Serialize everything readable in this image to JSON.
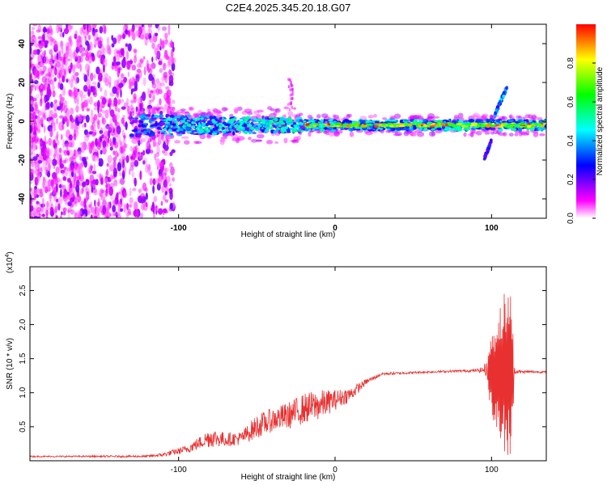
{
  "title": "C2E4.2025.345.20.18.G07",
  "chart_data": [
    {
      "type": "heatmap",
      "xlabel": "Height of straight line (km)",
      "ylabel": "Frequency (Hz)",
      "xlim": [
        -195,
        135
      ],
      "ylim": [
        -50,
        50
      ],
      "xticks": [
        -100,
        0,
        100
      ],
      "yticks": [
        -40,
        -20,
        0,
        20,
        40
      ],
      "colorbar": {
        "label": "Normalized spectral amplitude",
        "range": [
          0,
          1
        ],
        "ticks": [
          0.0,
          0.2,
          0.4,
          0.6,
          0.8
        ],
        "colormap": [
          "#ffffff",
          "#ff00ff",
          "#7f00ff",
          "#0000ff",
          "#0080ff",
          "#00ffff",
          "#00ff80",
          "#00ff00",
          "#80ff00",
          "#ffff00",
          "#ff8000",
          "#ff0000"
        ]
      },
      "features": [
        {
          "name": "noise scatter",
          "x_range": [
            -195,
            -108
          ],
          "freq_range": [
            -50,
            50
          ]
        },
        {
          "name": "main band",
          "x_range": [
            -130,
            135
          ],
          "center_freq": -2
        },
        {
          "name": "strong line",
          "x_range": [
            -20,
            135
          ],
          "center_freq": -2
        },
        {
          "name": "low burst",
          "x_range": [
            95,
            100
          ],
          "freq_range": [
            -20,
            -10
          ]
        },
        {
          "name": "high burst",
          "x_range": [
            102,
            110
          ],
          "freq_range": [
            5,
            18
          ]
        },
        {
          "name": "minor streak",
          "x_range": [
            -30,
            -27
          ],
          "freq_range": [
            5,
            22
          ]
        }
      ]
    },
    {
      "type": "line",
      "title": "",
      "xlabel": "Height of straight line (km)",
      "ylabel": "SNR (10 * v/v)",
      "y_scale_label": "(x10",
      "y_scale_exp": "4",
      "y_scale_close": ")",
      "xlim": [
        -195,
        135
      ],
      "ylim": [
        0,
        2.85
      ],
      "xticks": [
        -100,
        0,
        100
      ],
      "yticks": [
        0.5,
        1.0,
        1.5,
        2.0,
        2.5
      ],
      "color": "#e83030",
      "envelope": [
        {
          "x": -195,
          "base": 0.06,
          "amp": 0.02
        },
        {
          "x": -120,
          "base": 0.06,
          "amp": 0.03
        },
        {
          "x": -110,
          "base": 0.08,
          "amp": 0.06
        },
        {
          "x": -95,
          "base": 0.15,
          "amp": 0.12
        },
        {
          "x": -85,
          "base": 0.25,
          "amp": 0.2
        },
        {
          "x": -80,
          "base": 0.3,
          "amp": 0.3
        },
        {
          "x": -70,
          "base": 0.28,
          "amp": 0.2
        },
        {
          "x": -60,
          "base": 0.3,
          "amp": 0.2
        },
        {
          "x": -50,
          "base": 0.45,
          "amp": 0.35
        },
        {
          "x": -40,
          "base": 0.55,
          "amp": 0.35
        },
        {
          "x": -30,
          "base": 0.6,
          "amp": 0.4
        },
        {
          "x": -20,
          "base": 0.7,
          "amp": 0.45
        },
        {
          "x": -10,
          "base": 0.75,
          "amp": 0.45
        },
        {
          "x": 0,
          "base": 0.85,
          "amp": 0.3
        },
        {
          "x": 10,
          "base": 0.95,
          "amp": 0.2
        },
        {
          "x": 20,
          "base": 1.15,
          "amp": 0.08
        },
        {
          "x": 30,
          "base": 1.27,
          "amp": 0.04
        },
        {
          "x": 60,
          "base": 1.3,
          "amp": 0.03
        },
        {
          "x": 90,
          "base": 1.32,
          "amp": 0.04
        },
        {
          "x": 95,
          "base": 1.32,
          "amp": 0.1
        },
        {
          "x": 100,
          "base": 1.3,
          "amp": 0.6
        },
        {
          "x": 105,
          "base": 1.25,
          "amp": 1.05
        },
        {
          "x": 108,
          "base": 1.3,
          "amp": 1.2
        },
        {
          "x": 112,
          "base": 1.3,
          "amp": 1.3
        },
        {
          "x": 115,
          "base": 1.3,
          "amp": 0.05
        },
        {
          "x": 135,
          "base": 1.3,
          "amp": 0.03
        }
      ]
    }
  ]
}
